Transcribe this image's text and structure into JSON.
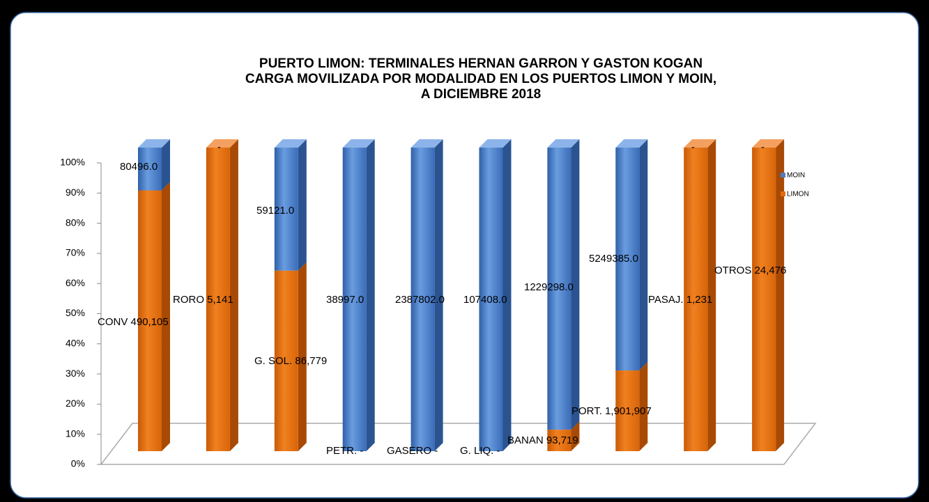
{
  "chart_data": {
    "type": "bar",
    "stacking": "percent",
    "title": [
      "PUERTO LIMON: TERMINALES HERNAN GARRON Y GASTON KOGAN",
      "CARGA MOVILIZADA POR MODALIDAD EN LOS PUERTOS LIMON Y MOIN,",
      "A DICIEMBRE  2018"
    ],
    "categories": [
      "CONV",
      "RORO",
      "G. SOL.",
      "PETR.",
      "GASERO",
      "G. LIQ.",
      "BANAN",
      "PORT.",
      "PASAJ.",
      "OTROS"
    ],
    "series": [
      {
        "name": "LIMON",
        "color": "#e46c0a",
        "values": [
          490105,
          5141,
          86779,
          0,
          0,
          0,
          93719,
          1901907,
          1231,
          24476
        ],
        "value_labels": [
          "490,105",
          "5,141",
          "86,779",
          "-",
          "-",
          "-",
          "93,719",
          "1,901,907",
          "1,231",
          "24,476"
        ]
      },
      {
        "name": "MOIN",
        "color": "#4a7ec8",
        "values": [
          80496,
          0,
          59121,
          38997,
          2387802,
          107408,
          1229298,
          5249385,
          0,
          0
        ],
        "value_labels": [
          "80496.0",
          "-",
          "59121.0",
          "38997.0",
          "2387802.0",
          "107408.0",
          "1229298.0",
          "5249385.0",
          "-",
          "-"
        ]
      }
    ],
    "ylim": [
      0,
      100
    ],
    "yticks": [
      {
        "value": 0,
        "label": "0%"
      },
      {
        "value": 10,
        "label": "10%"
      },
      {
        "value": 20,
        "label": "20%"
      },
      {
        "value": 30,
        "label": "30%"
      },
      {
        "value": 40,
        "label": "40%"
      },
      {
        "value": 50,
        "label": "50%"
      },
      {
        "value": 60,
        "label": "60%"
      },
      {
        "value": 70,
        "label": "70%"
      },
      {
        "value": 80,
        "label": "80%"
      },
      {
        "value": 90,
        "label": "90%"
      },
      {
        "value": 100,
        "label": "100%"
      }
    ],
    "legend": "right"
  }
}
